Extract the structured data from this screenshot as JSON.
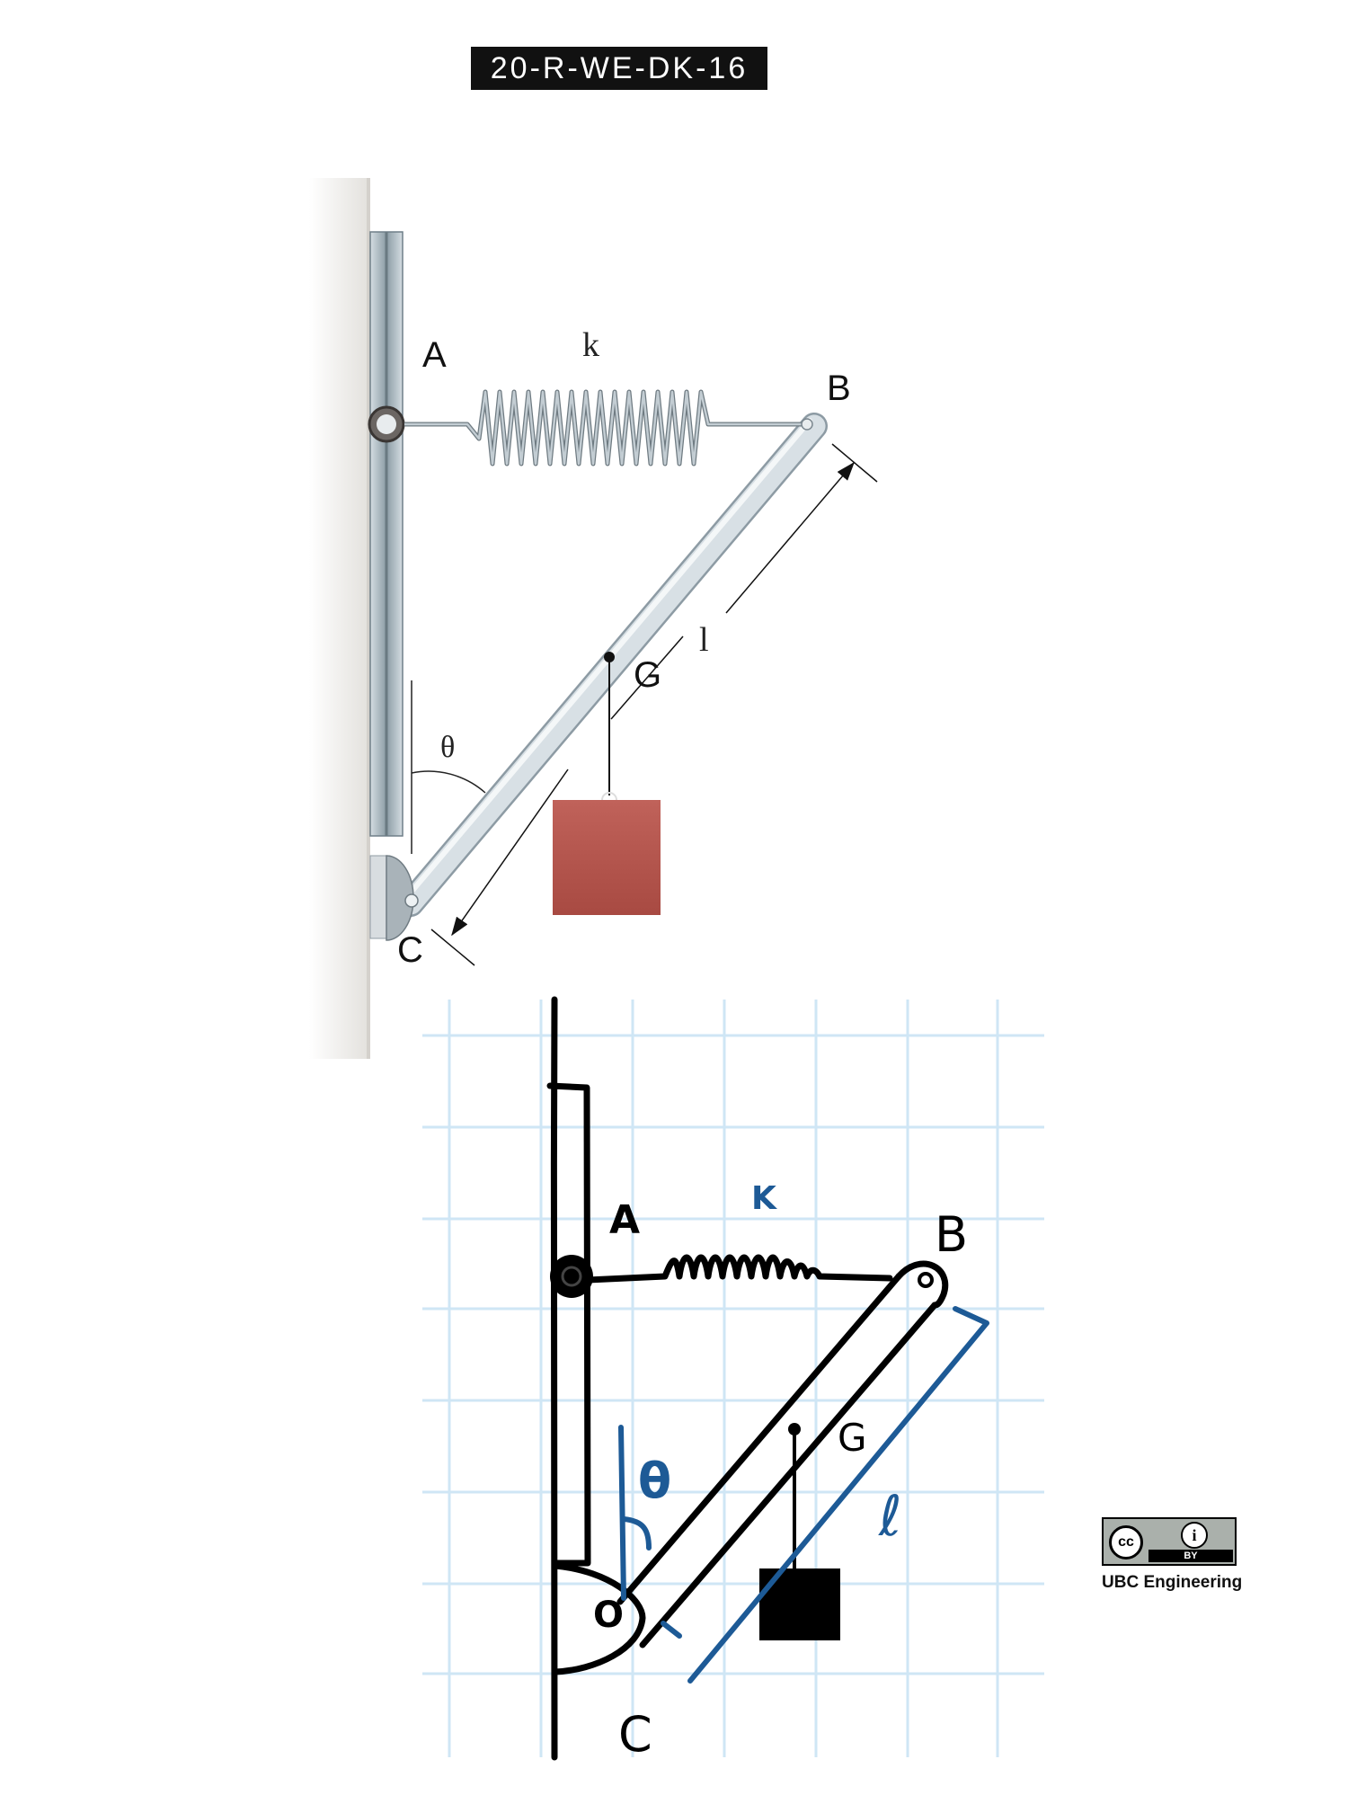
{
  "header": {
    "problem_code": "20-R-WE-DK-16"
  },
  "rendered_figure": {
    "label_A": "A",
    "label_B": "B",
    "label_C": "C",
    "label_G": "G",
    "label_k": "k",
    "label_l": "l",
    "label_theta": "θ",
    "colors": {
      "wall": "#ecebe8",
      "rod": "#c9d3da",
      "mass": "#b5544b",
      "rail": "#9fb0b8"
    }
  },
  "sketch": {
    "label_A": "A",
    "label_B": "B",
    "label_C": "C",
    "label_G": "G",
    "label_k": "K",
    "label_l": "ℓ",
    "label_theta": "θ",
    "label_O": "O",
    "colors": {
      "grid": "#cfe6f5",
      "ink": "#000000",
      "blue_ink": "#1d5a96"
    }
  },
  "license": {
    "cc": "cc",
    "by": "BY",
    "attribution": "UBC Engineering",
    "icon": "person-icon"
  }
}
